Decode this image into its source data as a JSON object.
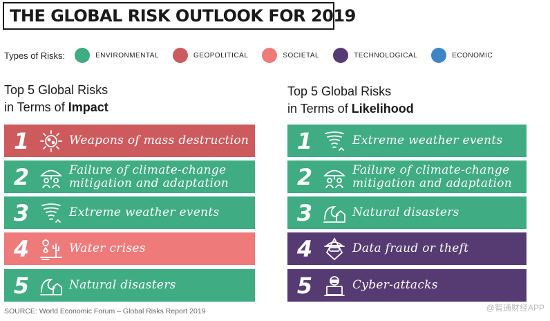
{
  "title": "THE GLOBAL RISK OUTLOOK FOR 2019",
  "legend": {
    "label": "Types of Risks:",
    "items": [
      {
        "name": "ENVIRONMENTAL",
        "color": "#3fac84"
      },
      {
        "name": "GEOPOLITICAL",
        "color": "#cd5b5e"
      },
      {
        "name": "SOCIETAL",
        "color": "#ee7b7a"
      },
      {
        "name": "TECHNOLOGICAL",
        "color": "#563b73"
      },
      {
        "name": "ECONOMIC",
        "color": "#3d85c6"
      }
    ]
  },
  "impact": {
    "heading_line1": "Top 5 Global Risks",
    "heading_prefix": "in Terms of ",
    "heading_bold": "Impact",
    "risks": [
      {
        "rank": "1",
        "line1": "Weapons of mass destruction",
        "line2": "",
        "type": "geopolitical",
        "icon": "explosion-icon"
      },
      {
        "rank": "2",
        "line1": "Failure of climate-change",
        "line2": "mitigation and adaptation",
        "type": "environmental",
        "icon": "umbrella-people-icon"
      },
      {
        "rank": "3",
        "line1": "Extreme weather events",
        "line2": "",
        "type": "environmental",
        "icon": "tornado-icon"
      },
      {
        "rank": "4",
        "line1": "Water crises",
        "line2": "",
        "type": "societal",
        "icon": "water-crisis-icon"
      },
      {
        "rank": "5",
        "line1": "Natural disasters",
        "line2": "",
        "type": "environmental",
        "icon": "wave-house-icon"
      }
    ]
  },
  "likelihood": {
    "heading_line1": "Top 5 Global Risks",
    "heading_prefix": "in Terms of ",
    "heading_bold": "Likelihood",
    "risks": [
      {
        "rank": "1",
        "line1": "Extreme weather events",
        "line2": "",
        "type": "environmental",
        "icon": "tornado-icon"
      },
      {
        "rank": "2",
        "line1": "Failure of climate-change",
        "line2": "mitigation and adaptation",
        "type": "environmental",
        "icon": "umbrella-people-icon"
      },
      {
        "rank": "3",
        "line1": "Natural disasters",
        "line2": "",
        "type": "environmental",
        "icon": "wave-house-icon"
      },
      {
        "rank": "4",
        "line1": "Data fraud or theft",
        "line2": "",
        "type": "technological",
        "icon": "hacker-icon"
      },
      {
        "rank": "5",
        "line1": "Cyber-attacks",
        "line2": "",
        "type": "technological",
        "icon": "laptop-hacker-icon"
      }
    ]
  },
  "source": "SOURCE: World Economic Forum – Global Risks Report 2019",
  "watermark": "@智通财经APP"
}
